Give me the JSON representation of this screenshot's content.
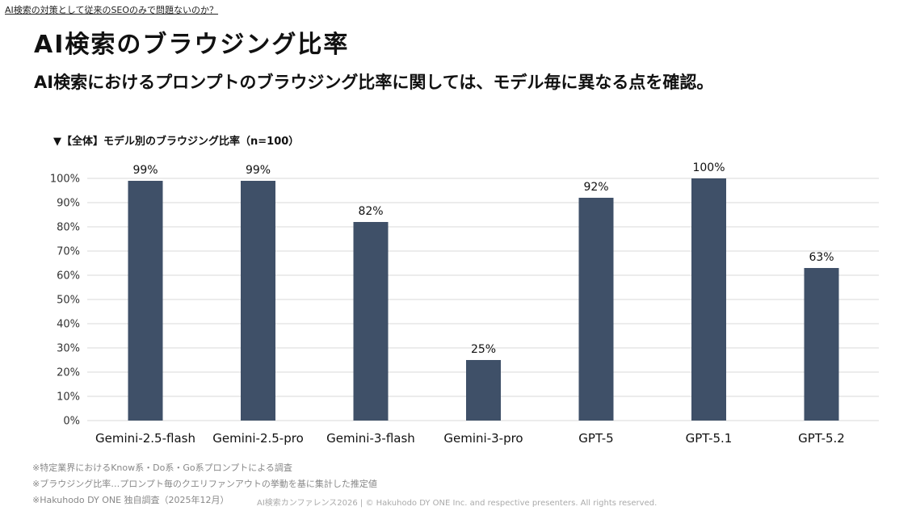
{
  "header": {
    "breadcrumb": "AI検索の対策として従来のSEOのみで問題ないのか？",
    "title": "AI検索のブラウジング比率",
    "subtitle": "AI検索におけるプロンプトのブラウジング比率に関しては、モデル毎に異なる点を確認。"
  },
  "chart_data": {
    "type": "bar",
    "title": "▼【全体】モデル別のブラウジング比率（n=100）",
    "categories": [
      "Gemini-2.5-flash",
      "Gemini-2.5-pro",
      "Gemini-3-flash",
      "Gemini-3-pro",
      "GPT-5",
      "GPT-5.1",
      "GPT-5.2"
    ],
    "values": [
      99,
      99,
      82,
      25,
      92,
      100,
      63
    ],
    "data_labels": [
      "99%",
      "99%",
      "82%",
      "25%",
      "92%",
      "100%",
      "63%"
    ],
    "ylim": [
      0,
      100
    ],
    "yticks": [
      "0%",
      "10%",
      "20%",
      "30%",
      "40%",
      "50%",
      "60%",
      "70%",
      "80%",
      "90%",
      "100%"
    ],
    "grid": true,
    "bar_color": "#3f5068",
    "grid_color": "#d9d9d9"
  },
  "footer": {
    "notes": [
      "※特定業界におけるKnow系・Do系・Go系プロンプトによる調査",
      "※ブラウジング比率…プロンプト毎のクエリファンアウトの挙動を基に集計した推定値",
      "※Hakuhodo DY ONE 独自調査（2025年12月）"
    ],
    "copyright": "AI検索カンファレンス2026 | © Hakuhodo DY ONE Inc. and respective presenters. All rights reserved."
  }
}
